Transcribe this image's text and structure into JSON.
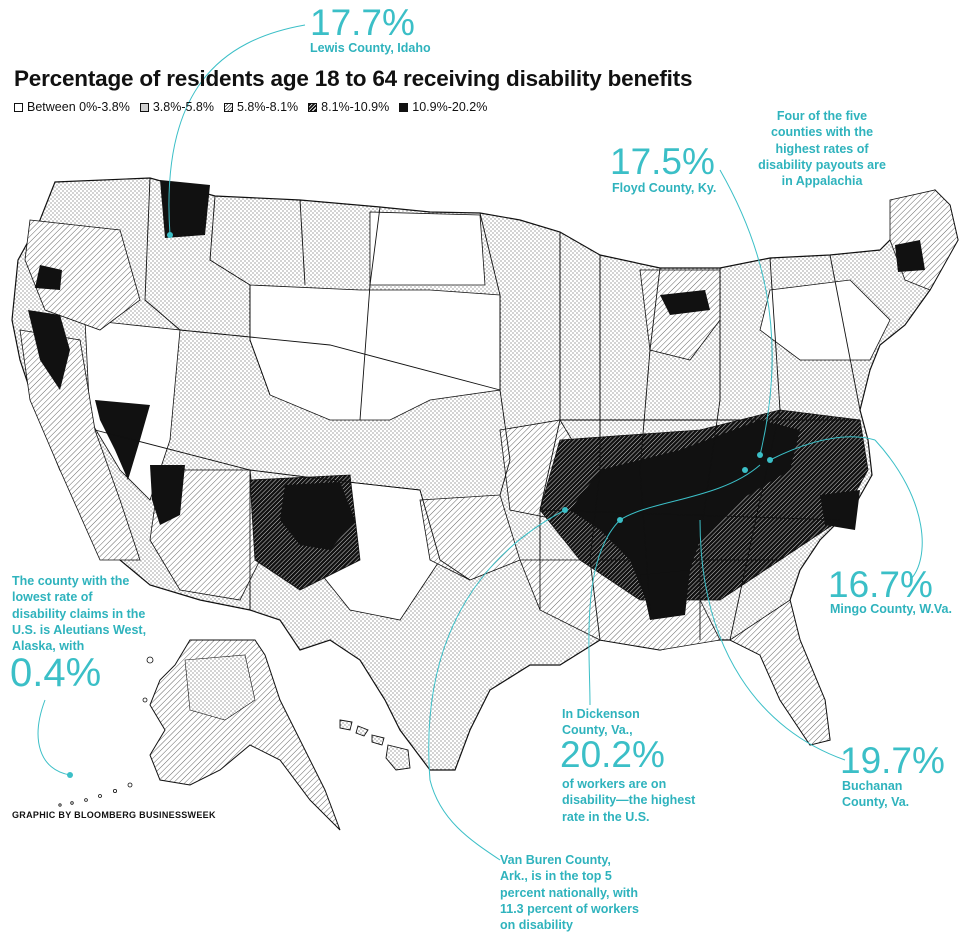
{
  "title": "Percentage of residents age 18 to 64 receiving disability benefits",
  "legend": [
    {
      "label": "Between 0%-3.8%",
      "class": "sw-0"
    },
    {
      "label": "3.8%-5.8%",
      "class": "sw-1"
    },
    {
      "label": "5.8%-8.1%",
      "class": "sw-2"
    },
    {
      "label": "8.1%-10.9%",
      "class": "sw-3"
    },
    {
      "label": "10.9%-20.2%",
      "class": "sw-4"
    }
  ],
  "colors": {
    "accent": "#3bbfc7",
    "ink": "#111111",
    "background": "#ffffff"
  },
  "callouts": {
    "lewis": {
      "value": "17.7%",
      "label": "Lewis County, Idaho"
    },
    "floyd": {
      "value": "17.5%",
      "label": "Floyd County, Ky."
    },
    "appalachia_note": "Four of the five counties with the highest rates of disability payouts are in Appalachia",
    "mingo": {
      "value": "16.7%",
      "label": "Mingo County, W.Va."
    },
    "buchanan": {
      "value": "19.7%",
      "label": "Buchanan County, Va."
    },
    "dickenson": {
      "pre": "In Dickenson County, Va.,",
      "value": "20.2%",
      "post": "of workers are on disability—the highest rate in the U.S."
    },
    "aleutians": {
      "pre": "The county with the lowest rate of disability claims in the U.S. is Aleutians West, Alaska, with",
      "value": "0.4%"
    },
    "van_buren": "Van Buren County, Ark., is in the top 5 percent nationally, with 11.3 percent of workers on disability"
  },
  "credit": "GRAPHIC BY BLOOMBERG BUSINESSWEEK"
}
